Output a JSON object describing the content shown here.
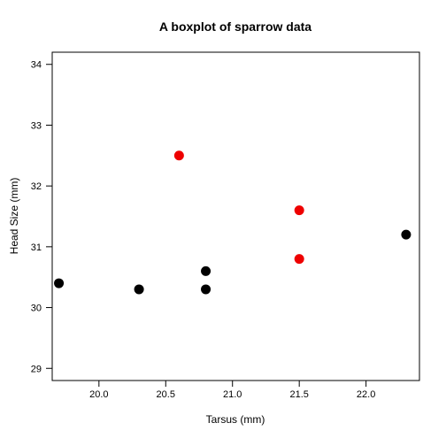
{
  "chart_data": {
    "type": "scatter",
    "title": "A boxplot of sparrow data",
    "xlabel": "Tarsus (mm)",
    "ylabel": "Head Size (mm)",
    "xlim": [
      19.65,
      22.4
    ],
    "ylim": [
      28.8,
      34.2
    ],
    "xticks": [
      "20.0",
      "20.5",
      "21.0",
      "21.5",
      "22.0"
    ],
    "yticks": [
      "29",
      "30",
      "31",
      "32",
      "33",
      "34"
    ],
    "grid": false,
    "series": [
      {
        "color": "#000000",
        "points": [
          {
            "x": 19.7,
            "y": 30.4
          },
          {
            "x": 20.3,
            "y": 30.3
          },
          {
            "x": 20.8,
            "y": 30.6
          },
          {
            "x": 20.8,
            "y": 30.3
          },
          {
            "x": 22.3,
            "y": 31.2
          }
        ]
      },
      {
        "color": "#ee0000",
        "points": [
          {
            "x": 20.6,
            "y": 32.5
          },
          {
            "x": 21.5,
            "y": 31.6
          },
          {
            "x": 21.5,
            "y": 30.8
          }
        ]
      }
    ]
  }
}
